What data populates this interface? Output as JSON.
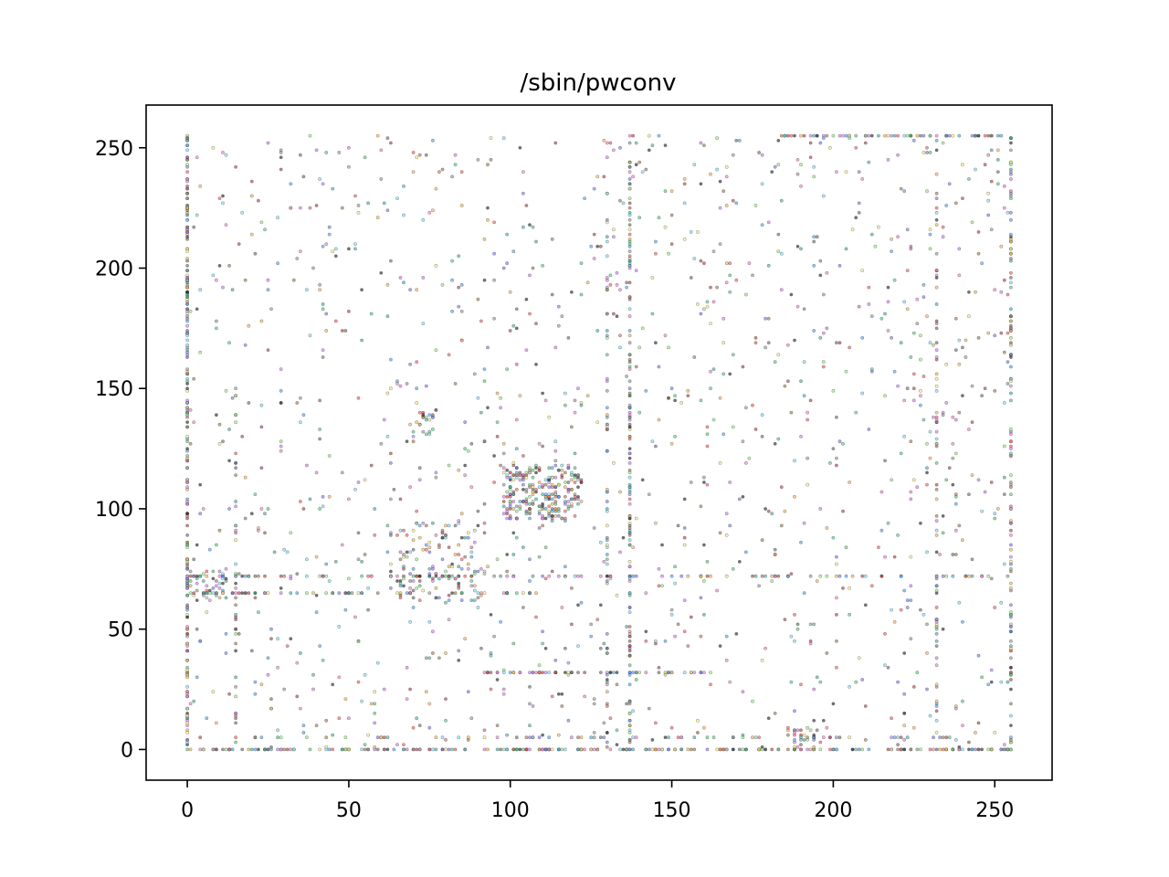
{
  "chart_data": {
    "type": "scatter",
    "title": "/sbin/pwconv",
    "xlabel": "",
    "ylabel": "",
    "xlim": [
      -12.75,
      267.75
    ],
    "ylim": [
      -12.75,
      267.75
    ],
    "x_ticks": [
      0,
      50,
      100,
      150,
      200,
      250
    ],
    "y_ticks": [
      0,
      50,
      100,
      150,
      200,
      250
    ],
    "x_tick_labels": [
      "0",
      "50",
      "100",
      "150",
      "200",
      "250"
    ],
    "y_tick_labels": [
      "0",
      "50",
      "100",
      "150",
      "200",
      "250"
    ],
    "grid": false,
    "legend": "none",
    "marker_size": 1,
    "seed": 1337,
    "palette": [
      "#000000",
      "#555555",
      "#888888",
      "#ff4444",
      "#ff66cc",
      "#cc66ff",
      "#6666ff",
      "#3399ff",
      "#66ddff",
      "#33cc66",
      "#88ee66",
      "#ffee66",
      "#ffaa33",
      "#996633",
      "#aa2222",
      "#22aa99"
    ],
    "dense_lines": [
      {
        "axis": "y",
        "value": 0,
        "from": 0,
        "to": 255,
        "count": 240
      },
      {
        "axis": "x",
        "value": 0,
        "from": 0,
        "to": 255,
        "count": 230
      },
      {
        "axis": "y",
        "value": 255,
        "from": 183,
        "to": 255,
        "count": 60
      },
      {
        "axis": "x",
        "value": 137,
        "from": 0,
        "to": 255,
        "count": 140
      },
      {
        "axis": "x",
        "value": 255,
        "from": 0,
        "to": 255,
        "count": 120
      },
      {
        "axis": "x",
        "value": 232,
        "from": 0,
        "to": 255,
        "count": 70
      },
      {
        "axis": "y",
        "value": 72,
        "from": 0,
        "to": 255,
        "count": 110
      },
      {
        "axis": "y",
        "value": 65,
        "from": 0,
        "to": 110,
        "count": 60
      },
      {
        "axis": "y",
        "value": 32,
        "from": 90,
        "to": 165,
        "count": 60
      },
      {
        "axis": "x",
        "value": 130,
        "from": 0,
        "to": 255,
        "count": 60
      },
      {
        "axis": "y",
        "value": 5,
        "from": 0,
        "to": 255,
        "count": 60
      },
      {
        "axis": "x",
        "value": 15,
        "from": 0,
        "to": 150,
        "count": 40
      }
    ],
    "dense_clusters": [
      {
        "x": [
          98,
          122
        ],
        "y": [
          95,
          118
        ],
        "count": 240
      },
      {
        "x": [
          63,
          93
        ],
        "y": [
          62,
          95
        ],
        "count": 120
      },
      {
        "x": [
          70,
          78
        ],
        "y": [
          130,
          141
        ],
        "count": 24
      },
      {
        "x": [
          0,
          12
        ],
        "y": [
          62,
          75
        ],
        "count": 40
      },
      {
        "x": [
          185,
          195
        ],
        "y": [
          0,
          10
        ],
        "count": 25
      }
    ],
    "background_points": {
      "x": [
        0,
        255
      ],
      "y": [
        0,
        255
      ],
      "count": 1300
    }
  }
}
